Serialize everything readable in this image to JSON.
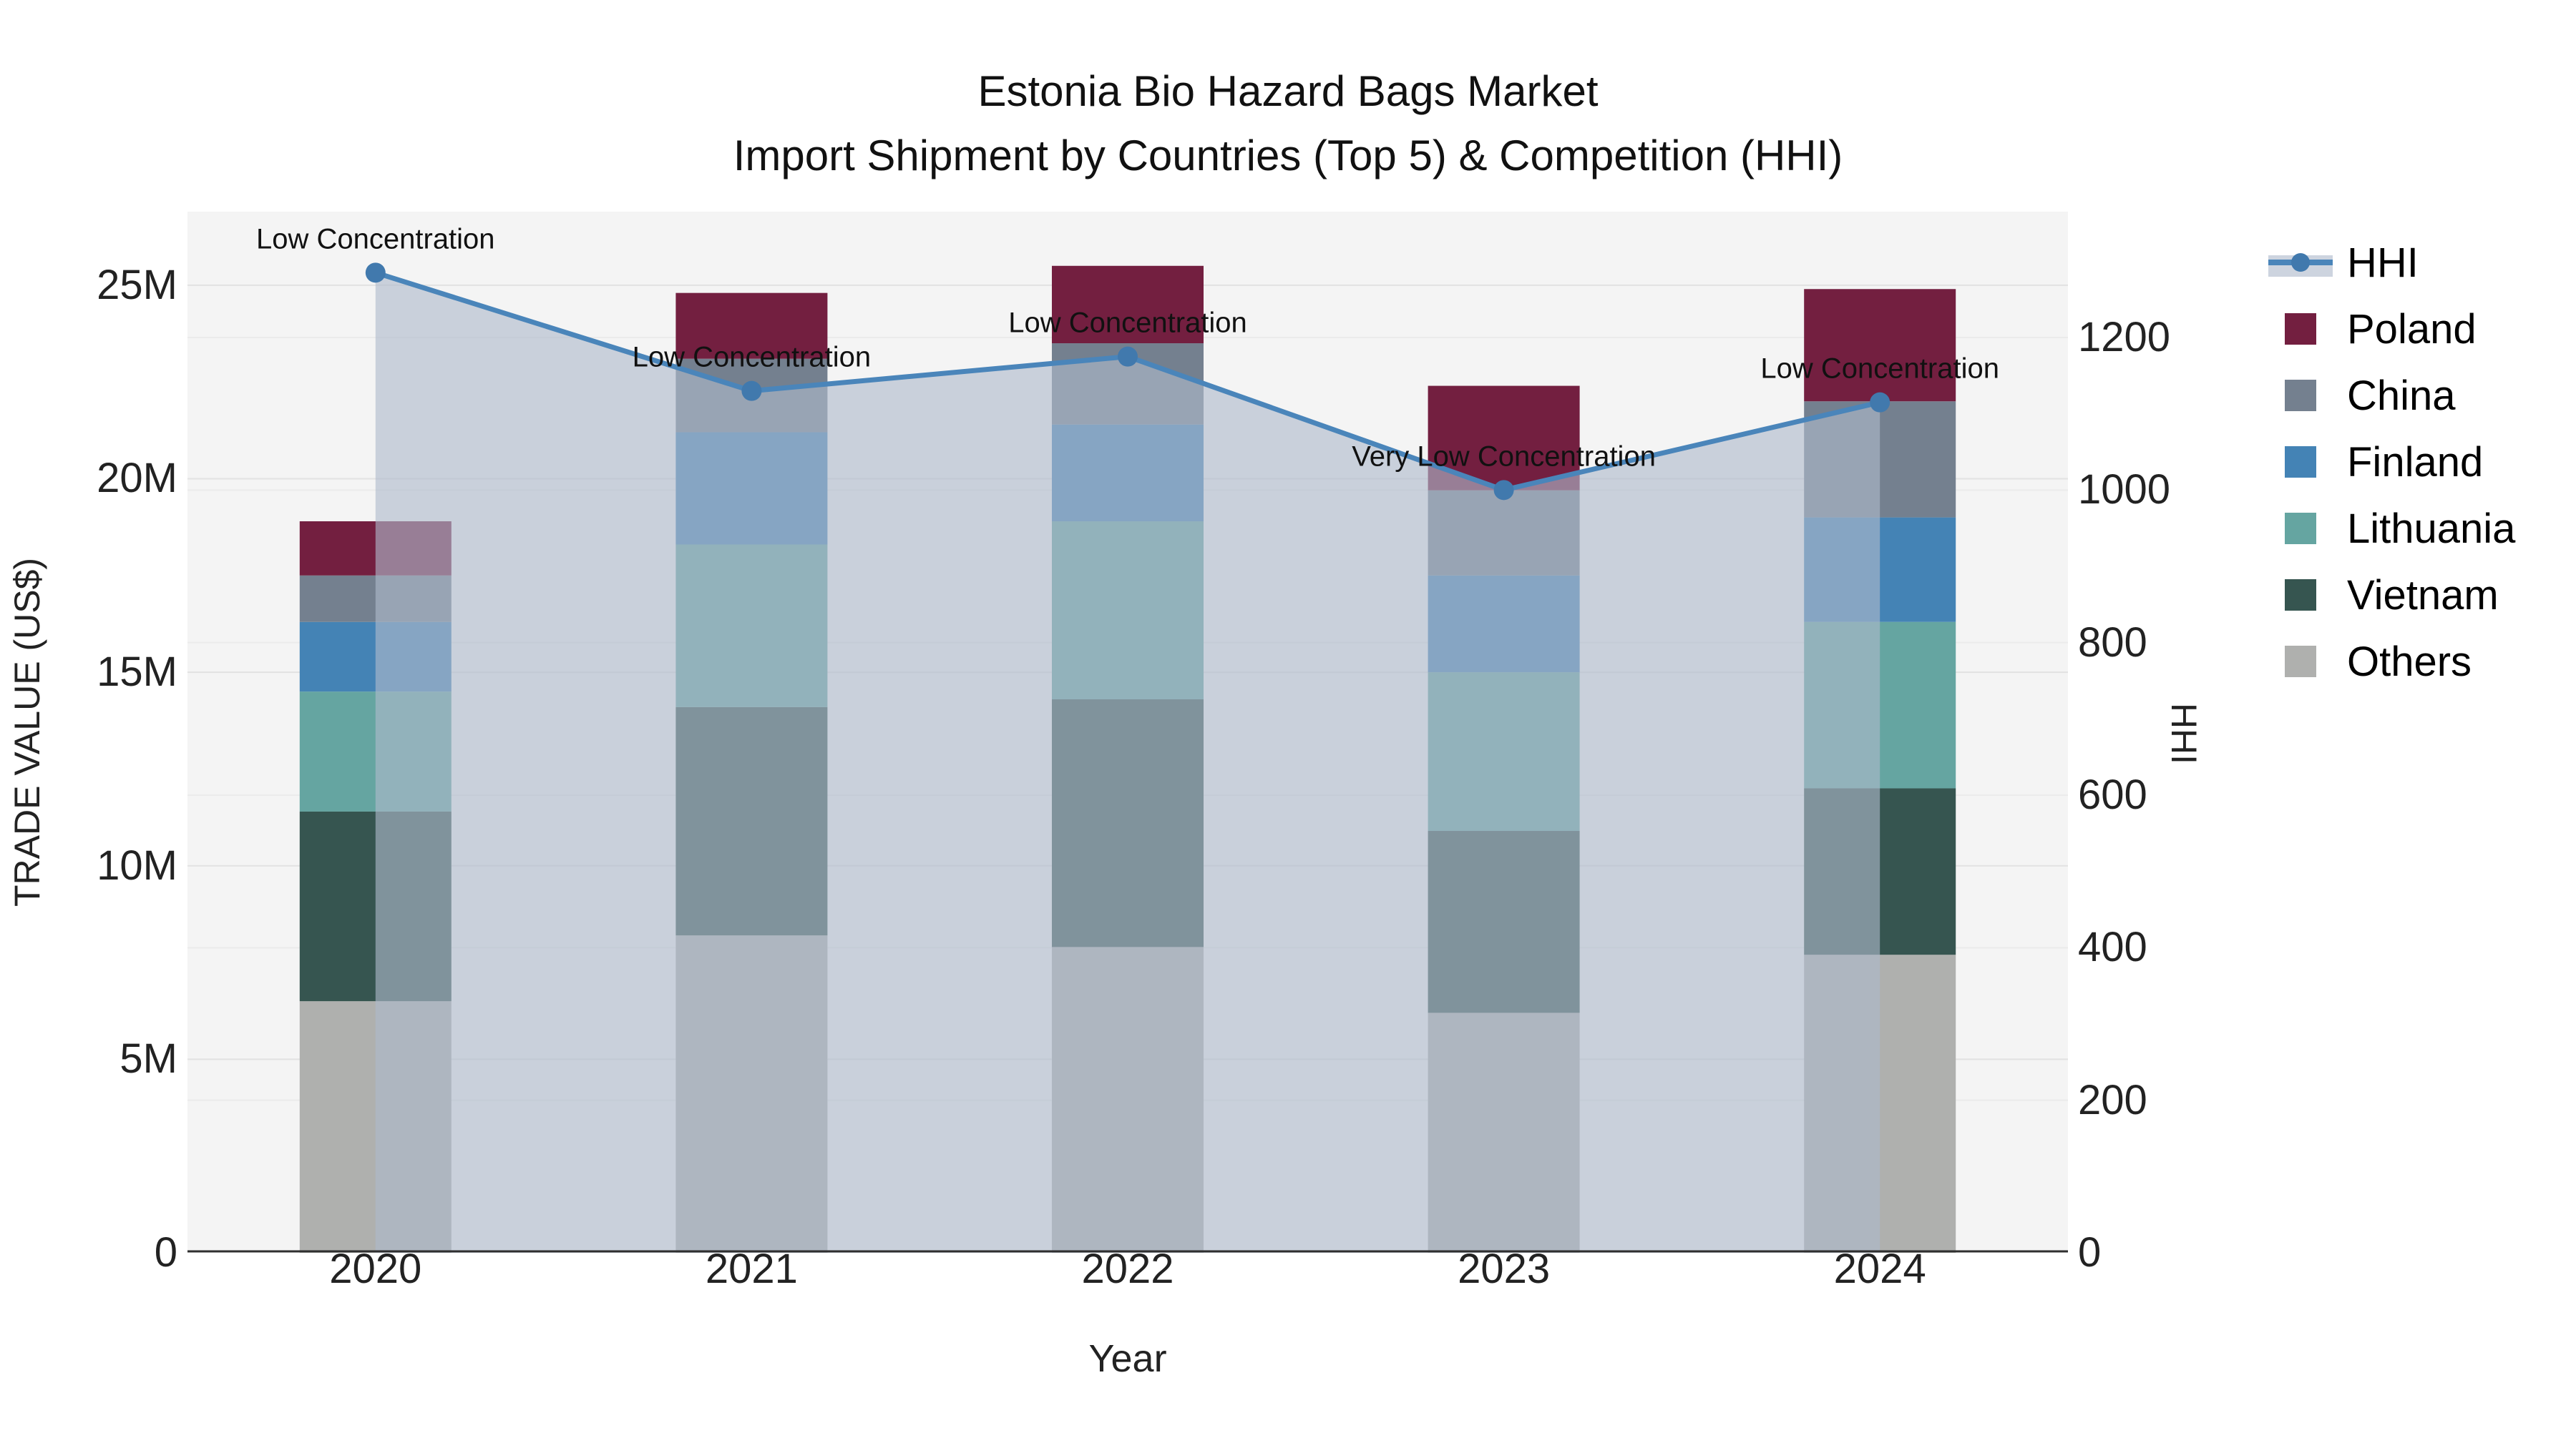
{
  "title": {
    "line1": "Estonia Bio Hazard Bags Market",
    "line2": "Import Shipment by Countries (Top 5) & Competition (HHI)"
  },
  "chart_data": {
    "type": "bar",
    "subtype": "stacked-bar-with-line",
    "categories": [
      "2020",
      "2021",
      "2022",
      "2023",
      "2024"
    ],
    "stack_series": [
      {
        "name": "Others",
        "color": "#AFB0AE",
        "values": [
          6.5,
          8.2,
          7.9,
          6.2,
          7.7
        ]
      },
      {
        "name": "Vietnam",
        "color": "#365550",
        "values": [
          4.9,
          5.9,
          6.4,
          4.7,
          4.3
        ]
      },
      {
        "name": "Lithuania",
        "color": "#65A5A1",
        "values": [
          3.1,
          4.2,
          4.6,
          4.1,
          4.3
        ]
      },
      {
        "name": "Finland",
        "color": "#4483B5",
        "values": [
          1.8,
          2.9,
          2.5,
          2.5,
          2.7
        ]
      },
      {
        "name": "China",
        "color": "#74808F",
        "values": [
          1.2,
          1.9,
          2.1,
          2.2,
          3.0
        ]
      },
      {
        "name": "Poland",
        "color": "#731F40",
        "values": [
          1.4,
          1.7,
          2.0,
          2.7,
          2.9
        ]
      }
    ],
    "line_series": {
      "name": "HHI",
      "line_color": "#4A85BA",
      "marker_color": "#4179AD",
      "fill_color": "rgba(174,185,204,0.62)",
      "values": [
        1285,
        1130,
        1175,
        1000,
        1115
      ],
      "annotations": [
        "Low Concentration",
        "Low Concentration",
        "Low Concentration",
        "Very Low Concentration",
        "Low Concentration"
      ]
    },
    "axes": {
      "left": {
        "title": "TRADE VALUE (US$)",
        "max": 26.9,
        "ticks": [
          {
            "v": 0,
            "label": "0"
          },
          {
            "v": 5,
            "label": "5M"
          },
          {
            "v": 10,
            "label": "10M"
          },
          {
            "v": 15,
            "label": "15M"
          },
          {
            "v": 20,
            "label": "20M"
          },
          {
            "v": 25,
            "label": "25M"
          }
        ]
      },
      "right": {
        "title": "HHI",
        "max": 1365,
        "ticks": [
          {
            "v": 0,
            "label": "0"
          },
          {
            "v": 200,
            "label": "200"
          },
          {
            "v": 400,
            "label": "400"
          },
          {
            "v": 600,
            "label": "600"
          },
          {
            "v": 800,
            "label": "800"
          },
          {
            "v": 1000,
            "label": "1000"
          },
          {
            "v": 1200,
            "label": "1200"
          }
        ]
      },
      "x": {
        "title": "Year"
      }
    },
    "legend": [
      {
        "name": "HHI",
        "type": "line"
      },
      {
        "name": "Poland",
        "type": "swatch",
        "color": "#731F40"
      },
      {
        "name": "China",
        "type": "swatch",
        "color": "#74808F"
      },
      {
        "name": "Finland",
        "type": "swatch",
        "color": "#4483B5"
      },
      {
        "name": "Lithuania",
        "type": "swatch",
        "color": "#65A5A1"
      },
      {
        "name": "Vietnam",
        "type": "swatch",
        "color": "#365550"
      },
      {
        "name": "Others",
        "type": "swatch",
        "color": "#AFB0AE"
      }
    ],
    "style": {
      "plot_bg": "#F4F4F4",
      "grid_left_color": "#E2E2E2",
      "grid_right_color": "#EBEBEB",
      "axis_line_color": "#2F2F2F",
      "annotation_color": "#111111"
    }
  }
}
